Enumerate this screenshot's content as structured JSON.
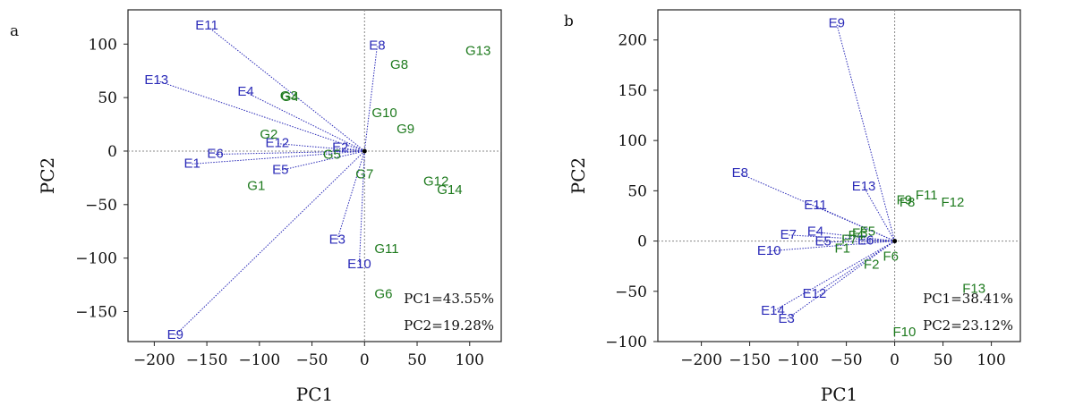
{
  "colors": {
    "vector": "#2b2bb8",
    "point": "#1e7a1e",
    "frame": "#222222",
    "origin_line": "#888888"
  },
  "chart_data": [
    {
      "type": "scatter",
      "panel_label": "a",
      "xlabel": "PC1",
      "ylabel": "PC2",
      "xlim": [
        -225,
        130
      ],
      "ylim": [
        -178,
        132
      ],
      "xticks": [
        -200,
        -150,
        -100,
        -50,
        0,
        50,
        100
      ],
      "yticks": [
        -150,
        -100,
        -50,
        0,
        50,
        100
      ],
      "notes": [
        "PC1=43.55%",
        "PC2=19.28%"
      ],
      "vectors": [
        {
          "label": "E11",
          "x": -150,
          "y": 117
        },
        {
          "label": "E13",
          "x": -198,
          "y": 66
        },
        {
          "label": "E4",
          "x": -113,
          "y": 55
        },
        {
          "label": "E2",
          "x": -23,
          "y": 3
        },
        {
          "label": "E12",
          "x": -83,
          "y": 7
        },
        {
          "label": "E1",
          "x": -164,
          "y": -12
        },
        {
          "label": "E6",
          "x": -142,
          "y": -3
        },
        {
          "label": "E5",
          "x": -80,
          "y": -18
        },
        {
          "label": "E3",
          "x": -26,
          "y": -83
        },
        {
          "label": "E10",
          "x": -5,
          "y": -106
        },
        {
          "label": "E9",
          "x": -180,
          "y": -172
        },
        {
          "label": "E8",
          "x": 12,
          "y": 98
        }
      ],
      "points": [
        {
          "label": "G13",
          "x": 108,
          "y": 93
        },
        {
          "label": "G8",
          "x": 33,
          "y": 80
        },
        {
          "label": "G3",
          "x": -72,
          "y": 51
        },
        {
          "label": "G4",
          "x": -71,
          "y": 50
        },
        {
          "label": "G10",
          "x": 19,
          "y": 35
        },
        {
          "label": "G9",
          "x": 39,
          "y": 20
        },
        {
          "label": "G2",
          "x": -91,
          "y": 15
        },
        {
          "label": "G5",
          "x": -31,
          "y": -4
        },
        {
          "label": "G7",
          "x": 0,
          "y": -22
        },
        {
          "label": "G12",
          "x": 68,
          "y": -29
        },
        {
          "label": "G14",
          "x": 81,
          "y": -37
        },
        {
          "label": "G1",
          "x": -103,
          "y": -33
        },
        {
          "label": "G11",
          "x": 21,
          "y": -92
        },
        {
          "label": "G6",
          "x": 18,
          "y": -134
        }
      ]
    },
    {
      "type": "scatter",
      "panel_label": "b",
      "xlabel": "PC1",
      "ylabel": "PC2",
      "xlim": [
        -245,
        130
      ],
      "ylim": [
        -100,
        230
      ],
      "xticks": [
        -200,
        -150,
        -100,
        -50,
        0,
        50,
        100
      ],
      "yticks": [
        -100,
        -50,
        0,
        50,
        100,
        150,
        200
      ],
      "notes": [
        "PC1=38.41%",
        "PC2=23.12%"
      ],
      "vectors": [
        {
          "label": "E9",
          "x": -60,
          "y": 216
        },
        {
          "label": "E8",
          "x": -160,
          "y": 67
        },
        {
          "label": "E13",
          "x": -32,
          "y": 54
        },
        {
          "label": "E11",
          "x": -82,
          "y": 35
        },
        {
          "label": "E7",
          "x": -110,
          "y": 6
        },
        {
          "label": "E4",
          "x": -82,
          "y": 9
        },
        {
          "label": "E5",
          "x": -74,
          "y": -1
        },
        {
          "label": "E10",
          "x": -130,
          "y": -10
        },
        {
          "label": "E6",
          "x": -30,
          "y": 0
        },
        {
          "label": "E12",
          "x": -83,
          "y": -53
        },
        {
          "label": "E14",
          "x": -126,
          "y": -70
        },
        {
          "label": "E3",
          "x": -112,
          "y": -78
        }
      ],
      "points": [
        {
          "label": "F11",
          "x": 33,
          "y": 45
        },
        {
          "label": "F12",
          "x": 60,
          "y": 38
        },
        {
          "label": "F8",
          "x": 13,
          "y": 38
        },
        {
          "label": "F9",
          "x": 10,
          "y": 40
        },
        {
          "label": "F5",
          "x": -28,
          "y": 9
        },
        {
          "label": "F3",
          "x": -36,
          "y": 7
        },
        {
          "label": "F4",
          "x": -40,
          "y": 5
        },
        {
          "label": "F7",
          "x": -47,
          "y": 1
        },
        {
          "label": "F1",
          "x": -54,
          "y": -8
        },
        {
          "label": "F6",
          "x": -4,
          "y": -16
        },
        {
          "label": "F2",
          "x": -24,
          "y": -24
        },
        {
          "label": "F13",
          "x": 82,
          "y": -48
        },
        {
          "label": "F10",
          "x": 10,
          "y": -91
        }
      ]
    }
  ]
}
